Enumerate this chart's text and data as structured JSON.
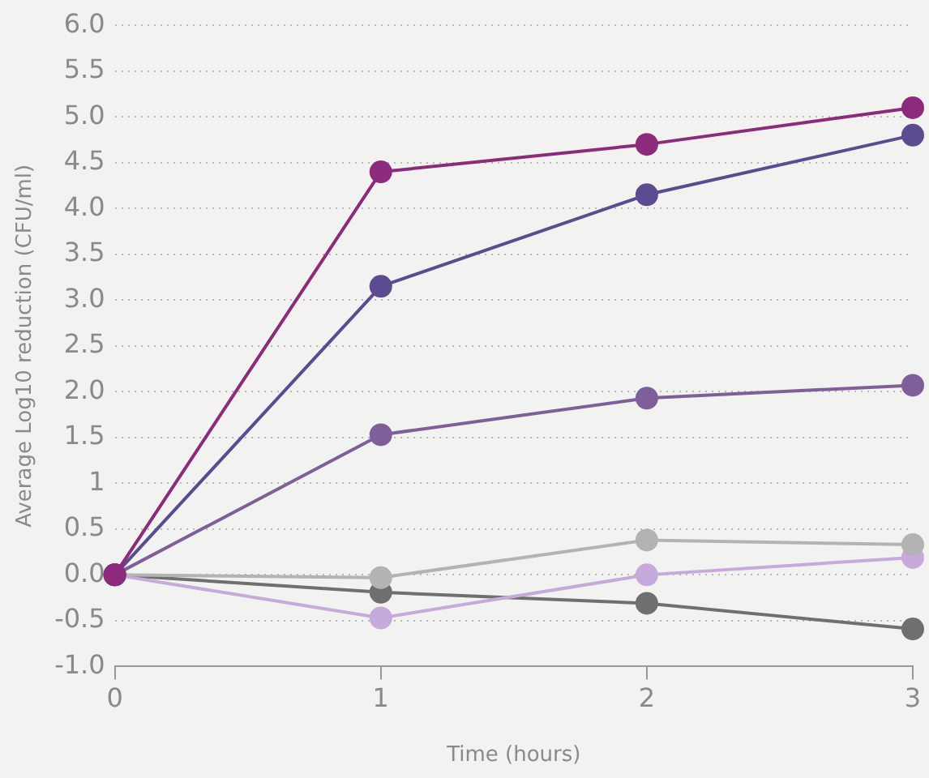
{
  "chart_data": {
    "type": "line",
    "xlabel": "Time (hours)",
    "ylabel": "Average Log10 reduction (CFU/ml)",
    "x": [
      0,
      1,
      2,
      3
    ],
    "xlim": [
      0,
      3
    ],
    "xticks": [
      0,
      1,
      2,
      3
    ],
    "ylim": [
      -1,
      6
    ],
    "yticks": [
      {
        "value": 6,
        "label": "6.0"
      },
      {
        "value": 5.5,
        "label": "5.5"
      },
      {
        "value": 5,
        "label": "5.0"
      },
      {
        "value": 4.5,
        "label": "4.5"
      },
      {
        "value": 4,
        "label": "4.0"
      },
      {
        "value": 3.5,
        "label": "3.5"
      },
      {
        "value": 3,
        "label": "3.0"
      },
      {
        "value": 2.5,
        "label": "2.5"
      },
      {
        "value": 2,
        "label": "2.0"
      },
      {
        "value": 1.5,
        "label": "1.5"
      },
      1,
      0.5,
      {
        "value": 0,
        "label": "0.0"
      },
      -0.5,
      {
        "value": -1,
        "label": "-1.0"
      }
    ],
    "grid": "y",
    "marker": "circle",
    "line_style": "solid",
    "legend": false,
    "series": [
      {
        "color": "#8c2b7b",
        "values": [
          0,
          4.4,
          4.7,
          5.1
        ]
      },
      {
        "color": "#5c4b90",
        "values": [
          0,
          3.15,
          4.15,
          4.8
        ]
      },
      {
        "color": "#7f5f99",
        "values": [
          0,
          1.53,
          1.93,
          2.07
        ]
      },
      {
        "color": "#b3b3b3",
        "values": [
          0,
          -0.03,
          0.38,
          0.33
        ]
      },
      {
        "color": "#c6aadb",
        "values": [
          0,
          -0.47,
          0,
          0.19
        ]
      },
      {
        "color": "#6f6f6f",
        "values": [
          0,
          -0.19,
          -0.31,
          -0.59
        ]
      }
    ]
  }
}
